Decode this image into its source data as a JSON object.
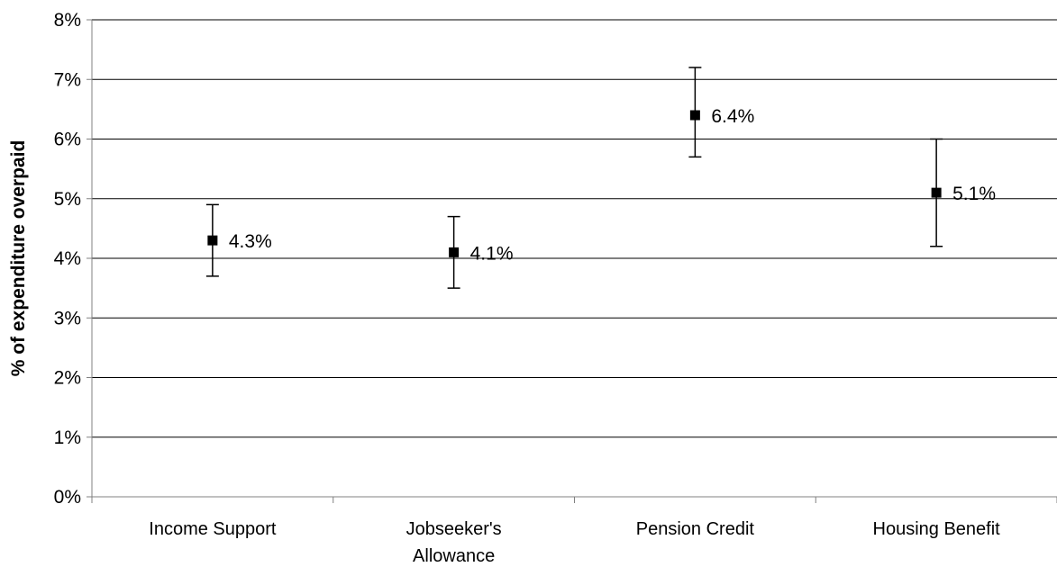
{
  "chart_data": {
    "type": "scatter",
    "categories": [
      "Income Support",
      "Jobseeker's Allowance",
      "Pension Credit",
      "Housing Benefit"
    ],
    "category_lines": [
      [
        "Income Support"
      ],
      [
        "Jobseeker's",
        "Allowance"
      ],
      [
        "Pension Credit"
      ],
      [
        "Housing Benefit"
      ]
    ],
    "series": [
      {
        "values": [
          4.3,
          4.1,
          6.4,
          5.1
        ],
        "error_low": [
          3.7,
          3.5,
          5.7,
          4.2
        ],
        "error_high": [
          4.9,
          4.7,
          7.2,
          6.0
        ],
        "data_labels": [
          "4.3%",
          "4.1%",
          "6.4%",
          "5.1%"
        ]
      }
    ],
    "title": "",
    "xlabel": "",
    "ylabel": "% of expenditure overpaid",
    "ylim": [
      0,
      8
    ],
    "yticks": [
      0,
      1,
      2,
      3,
      4,
      5,
      6,
      7,
      8
    ],
    "ytick_labels": [
      "0%",
      "1%",
      "2%",
      "3%",
      "4%",
      "5%",
      "6%",
      "7%",
      "8%"
    ],
    "grid": true,
    "legend": "none",
    "colors": {
      "marker": "#000000",
      "gridline": "#000000",
      "axis": "#808080",
      "background": "#ffffff"
    }
  }
}
